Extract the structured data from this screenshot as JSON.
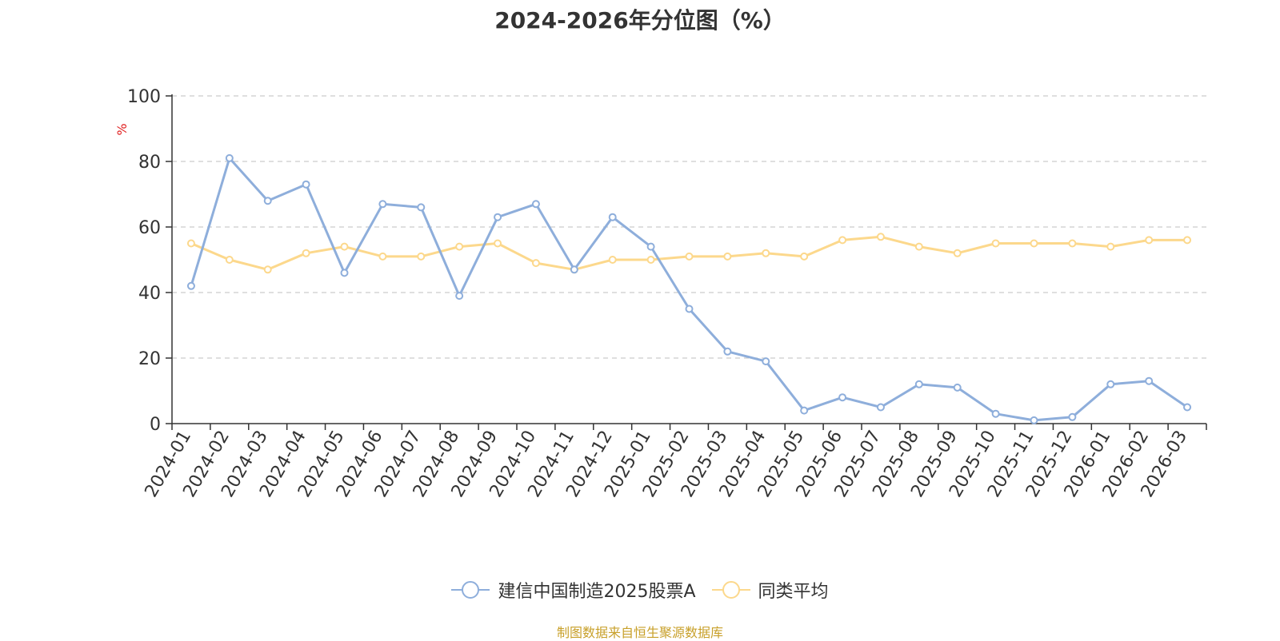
{
  "chart_data": {
    "type": "line",
    "title": "2024-2026年分位图（%）",
    "ylabel": "%",
    "xlabel": "",
    "ylim": [
      0,
      100
    ],
    "yticks": [
      0,
      20,
      40,
      60,
      80,
      100
    ],
    "grid": true,
    "legend_position": "bottom",
    "categories": [
      "2024-01",
      "2024-02",
      "2024-03",
      "2024-04",
      "2024-05",
      "2024-06",
      "2024-07",
      "2024-08",
      "2024-09",
      "2024-10",
      "2024-11",
      "2024-12",
      "2025-01",
      "2025-02",
      "2025-03",
      "2025-04",
      "2025-05",
      "2025-06",
      "2025-07",
      "2025-08",
      "2025-09",
      "2025-10",
      "2025-11",
      "2025-12",
      "2026-01",
      "2026-02",
      "2026-03"
    ],
    "series": [
      {
        "name": "建信中国制造2025股票A",
        "color": "#8eaedb",
        "values": [
          42,
          81,
          68,
          73,
          46,
          67,
          66,
          39,
          63,
          67,
          47,
          63,
          54,
          35,
          22,
          19,
          4,
          8,
          5,
          12,
          11,
          3,
          1,
          2,
          12,
          13,
          5
        ]
      },
      {
        "name": "同类平均",
        "color": "#fcd88c",
        "values": [
          55,
          50,
          47,
          52,
          54,
          51,
          51,
          54,
          55,
          49,
          47,
          50,
          50,
          51,
          51,
          52,
          51,
          56,
          57,
          54,
          52,
          55,
          55,
          55,
          54,
          56,
          56
        ]
      }
    ]
  },
  "source_text": "制图数据来自恒生聚源数据库"
}
